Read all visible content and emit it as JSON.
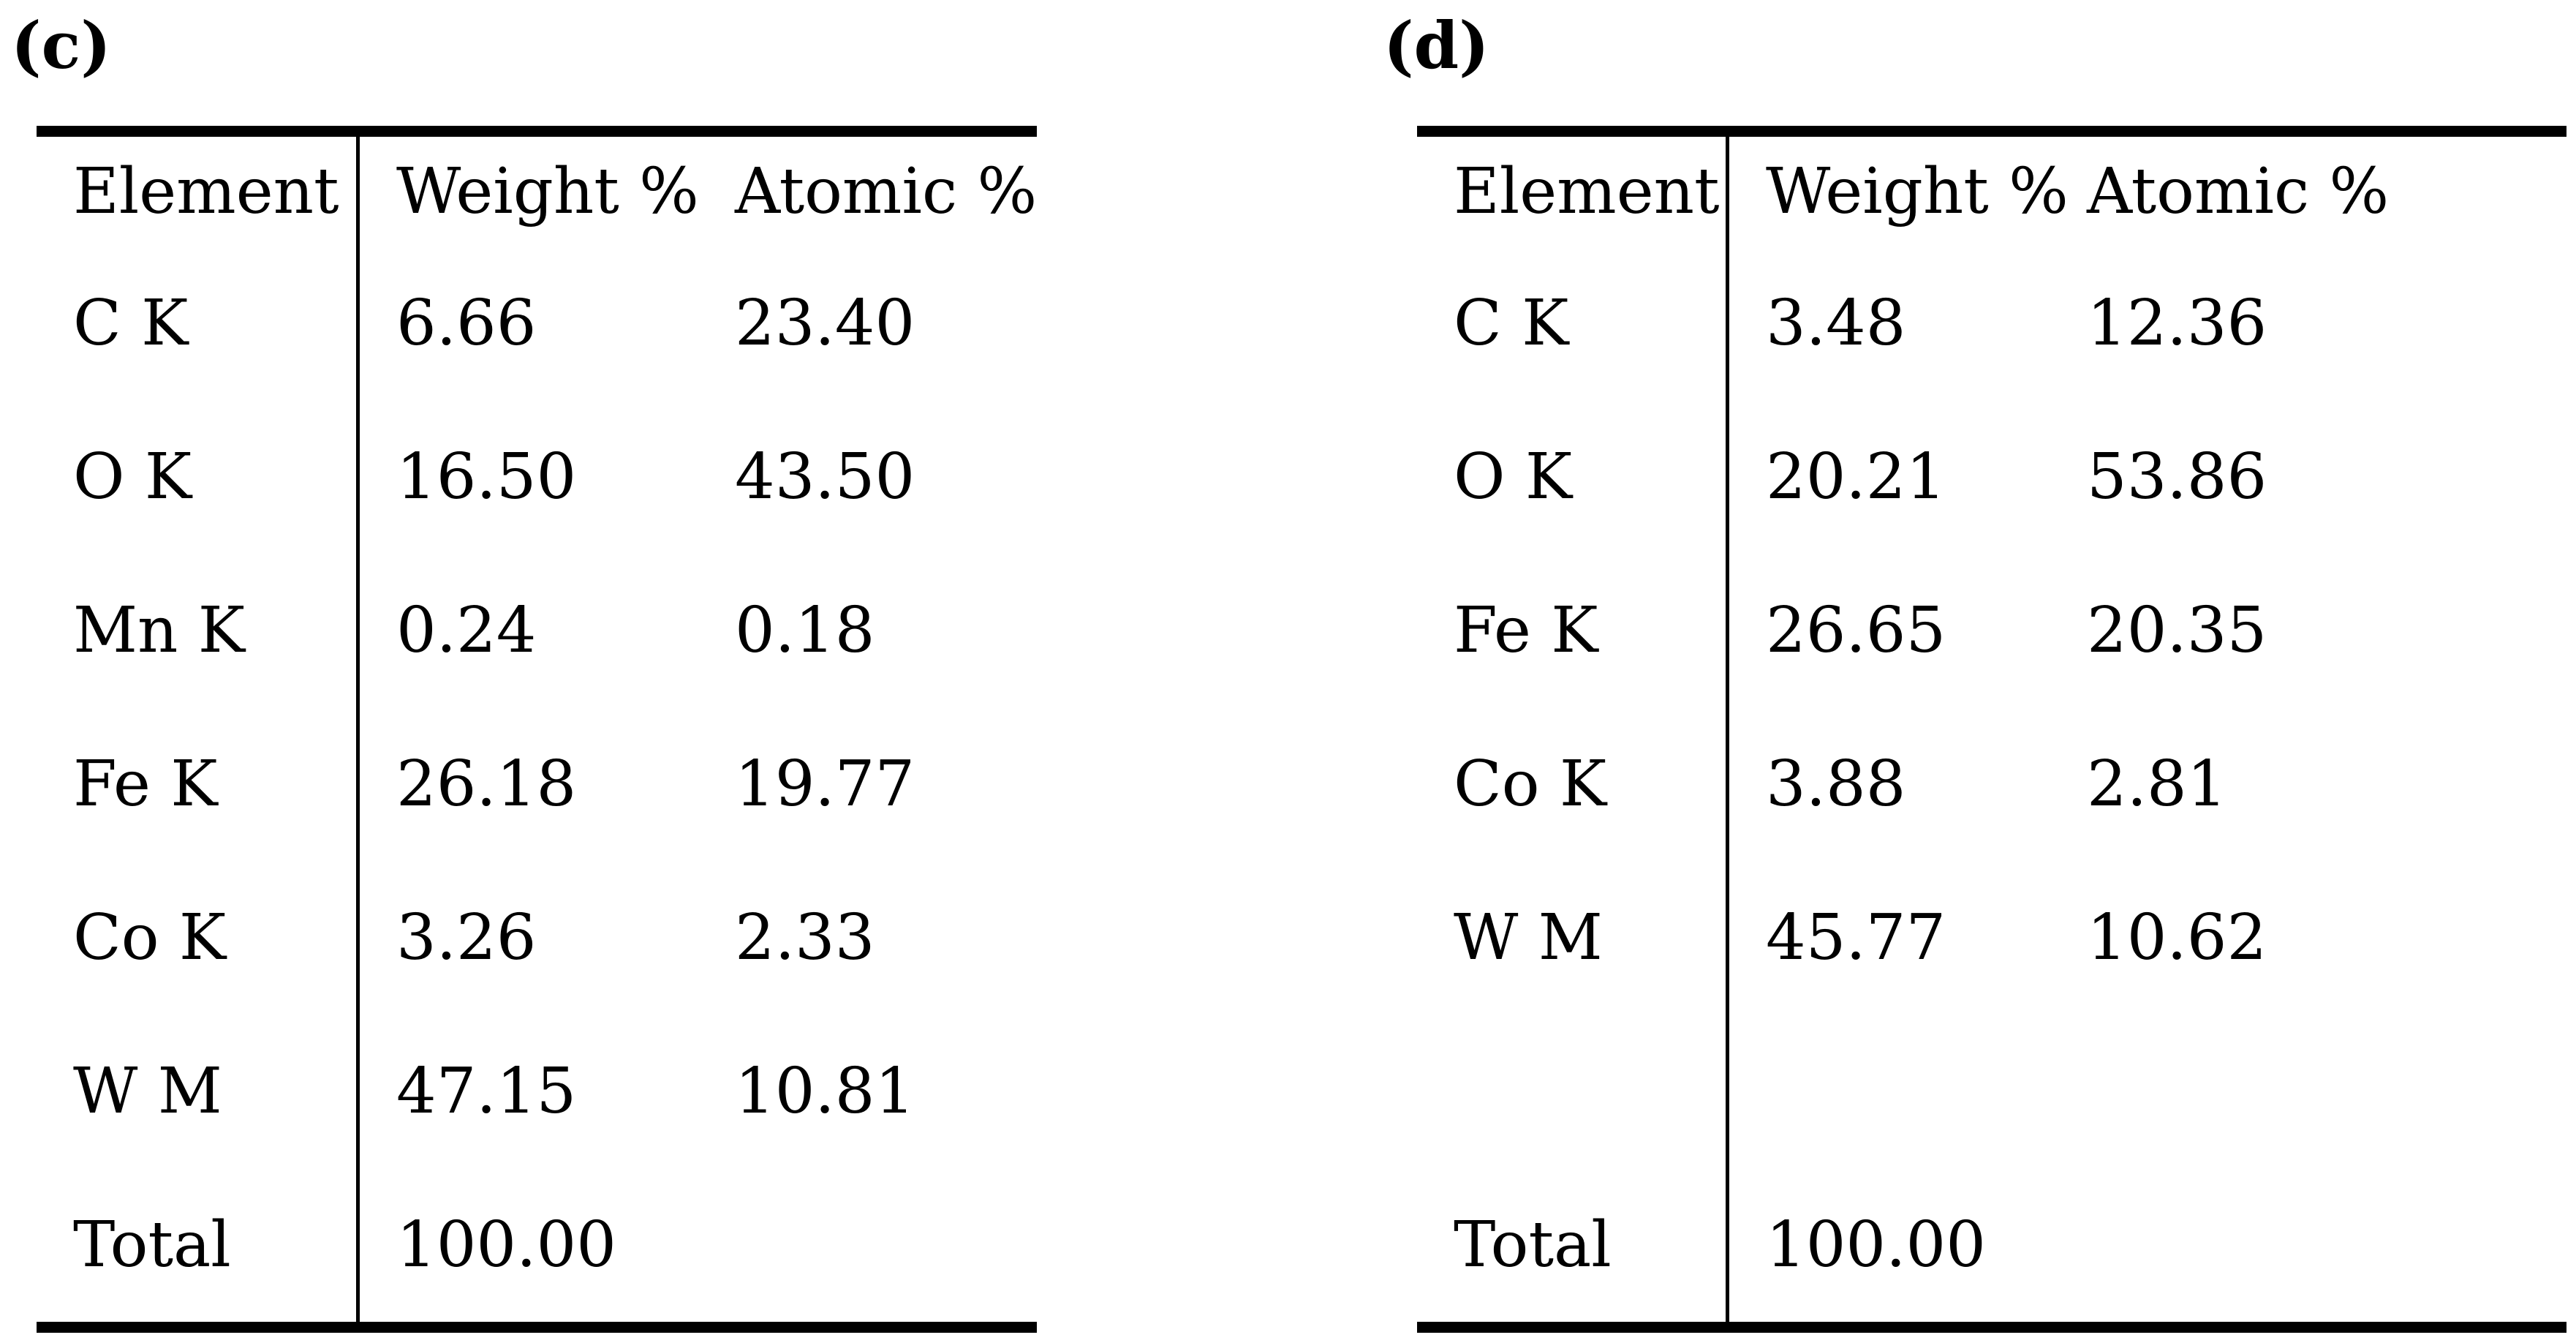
{
  "figure": {
    "description_colors": {
      "text": "#000000",
      "rules": "#000000",
      "background": "#ffffff"
    }
  },
  "tables": [
    {
      "label": "(c)",
      "columns": [
        "Element",
        "Weight %",
        "Atomic %"
      ],
      "rows": [
        {
          "element": "C K",
          "weight": "6.66",
          "atomic": "23.40"
        },
        {
          "element": "O K",
          "weight": "16.50",
          "atomic": "43.50"
        },
        {
          "element": "Mn K",
          "weight": "0.24",
          "atomic": "0.18"
        },
        {
          "element": "Fe K",
          "weight": "26.18",
          "atomic": "19.77"
        },
        {
          "element": "Co K",
          "weight": "3.26",
          "atomic": "2.33"
        },
        {
          "element": "W M",
          "weight": "47.15",
          "atomic": "10.81"
        },
        {
          "element": "Total",
          "weight": "100.00",
          "atomic": ""
        }
      ]
    },
    {
      "label": "(d)",
      "columns": [
        "Element",
        "Weight %",
        "Atomic %"
      ],
      "rows": [
        {
          "element": "C K",
          "weight": "3.48",
          "atomic": "12.36"
        },
        {
          "element": "O K",
          "weight": "20.21",
          "atomic": "53.86"
        },
        {
          "element": "Fe K",
          "weight": "26.65",
          "atomic": "20.35"
        },
        {
          "element": "Co K",
          "weight": "3.88",
          "atomic": "2.81"
        },
        {
          "element": "W M",
          "weight": "45.77",
          "atomic": "10.62"
        },
        {
          "element": "",
          "weight": "",
          "atomic": ""
        },
        {
          "element": "Total",
          "weight": "100.00",
          "atomic": ""
        }
      ]
    }
  ]
}
